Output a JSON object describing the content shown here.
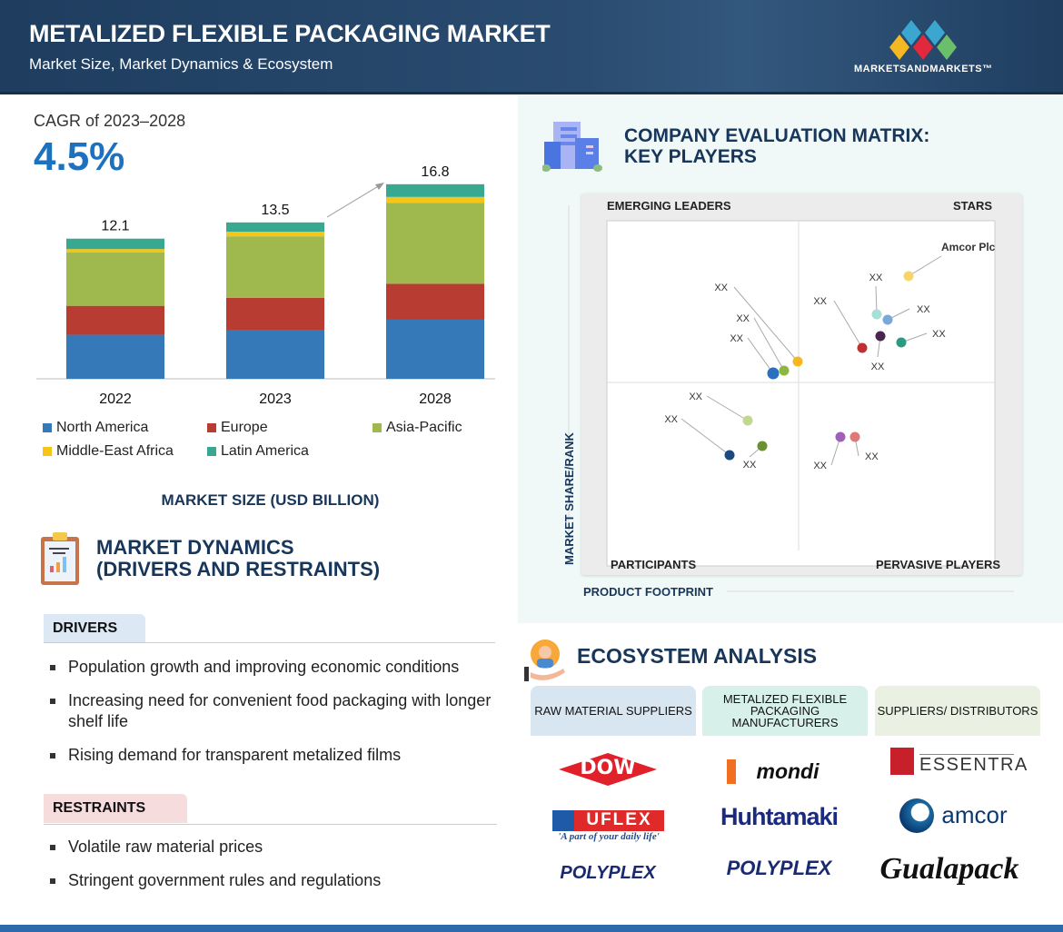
{
  "header": {
    "title": "METALIZED FLEXIBLE PACKAGING MARKET",
    "subtitle": "Market Size, Market Dynamics & Ecosystem",
    "brand": "MARKETSANDMARKETS™"
  },
  "cagr": {
    "label": "CAGR of 2023–2028",
    "value": "4.5%"
  },
  "chart_data": {
    "type": "bar",
    "stacked": true,
    "title": "MARKET SIZE (USD BILLION)",
    "categories": [
      "2022",
      "2023",
      "2028"
    ],
    "totals": [
      "12.1",
      "13.5",
      "16.8"
    ],
    "series": [
      {
        "name": "North America",
        "color": "#3579b8",
        "values": [
          3.8,
          4.2,
          5.1
        ]
      },
      {
        "name": "Europe",
        "color": "#b93c33",
        "values": [
          2.5,
          2.8,
          3.1
        ]
      },
      {
        "name": "Asia-Pacific",
        "color": "#9fb94f",
        "values": [
          4.6,
          5.3,
          7.0
        ]
      },
      {
        "name": "Middle-East Africa",
        "color": "#f5c518",
        "values": [
          0.3,
          0.4,
          0.5
        ]
      },
      {
        "name": "Latin America",
        "color": "#38a891",
        "values": [
          0.9,
          0.8,
          1.1
        ]
      }
    ],
    "grid": false,
    "legend": "bottom"
  },
  "dynamics": {
    "title1": "MARKET DYNAMICS",
    "title2": "(DRIVERS AND RESTRAINTS)",
    "drivers_label": "DRIVERS",
    "drivers": [
      "Population growth and improving economic conditions",
      "Increasing need for convenient food packaging with longer shelf life",
      "Rising demand for transparent metalized films"
    ],
    "restraints_label": "RESTRAINTS",
    "restraints": [
      "Volatile raw material prices",
      "Stringent government rules and regulations"
    ]
  },
  "matrix": {
    "title1": "COMPANY EVALUATION MATRIX:",
    "title2": "KEY PLAYERS",
    "quadrants": {
      "tl": "EMERGING LEADERS",
      "tr": "STARS",
      "bl": "PARTICIPANTS",
      "br": "PERVASIVE PLAYERS"
    },
    "y_axis": "MARKET SHARE/RANK",
    "x_axis": "PRODUCT FOOTPRINT",
    "companies": [
      {
        "label": "Amcor Plc",
        "color": "#f7d56a"
      },
      {
        "label": "XX",
        "color": "#a8e0d8"
      },
      {
        "label": "XX",
        "color": "#7aa8d8"
      },
      {
        "label": "XX",
        "color": "#4a2550"
      },
      {
        "label": "XX",
        "color": "#2a9a80"
      },
      {
        "label": "XX",
        "color": "#c03030"
      },
      {
        "label": "XX",
        "color": "#f6b820"
      },
      {
        "label": "XX",
        "color": "#8db840"
      },
      {
        "label": "XX",
        "color": "#2a70c0"
      },
      {
        "label": "XX",
        "color": "#c0d890"
      },
      {
        "label": "XX",
        "color": "#1a4a80"
      },
      {
        "label": "XX",
        "color": "#6a9030"
      },
      {
        "label": "XX",
        "color": "#a060b8"
      },
      {
        "label": "XX",
        "color": "#e07878"
      }
    ]
  },
  "ecosystem": {
    "title": "ECOSYSTEM ANALYSIS",
    "columns": [
      {
        "header": "RAW MATERIAL SUPPLIERS",
        "logos": [
          "DOW",
          "UFLEX",
          "POLYPLEX"
        ],
        "tagline": "'A part of your daily life'"
      },
      {
        "header": "METALIZED FLEXIBLE PACKAGING MANUFACTURERS",
        "logos": [
          "mondi",
          "Huhtamaki",
          "POLYPLEX"
        ]
      },
      {
        "header": "SUPPLIERS/ DISTRIBUTORS",
        "logos": [
          "ESSENTRA",
          "amcor",
          "Gualapack"
        ]
      }
    ]
  }
}
